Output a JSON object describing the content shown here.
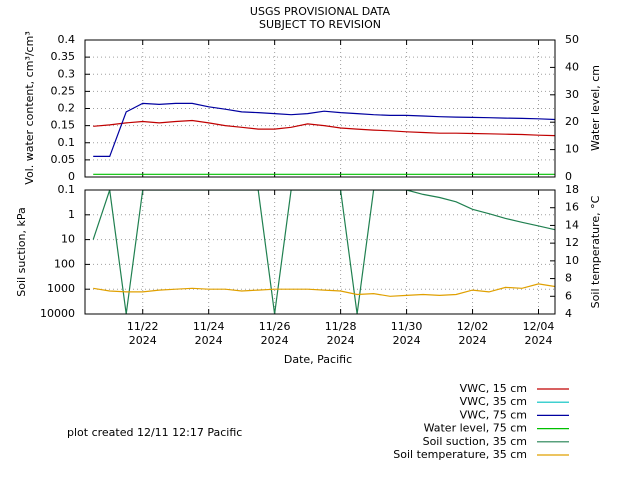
{
  "chart_data": [
    {
      "type": "line",
      "title": "USGS PROVISIONAL DATA",
      "subtitle": "SUBJECT TO REVISION",
      "y_label": "Vol. water content, cm³/cm³",
      "y2_label": "Water level, cm",
      "x": [
        "2024-11-20T12:00",
        "2024-11-21T00:00",
        "2024-11-21T12:00",
        "2024-11-22T00:00",
        "2024-11-22T12:00",
        "2024-11-23T00:00",
        "2024-11-23T12:00",
        "2024-11-24T00:00",
        "2024-11-24T12:00",
        "2024-11-25T00:00",
        "2024-11-25T12:00",
        "2024-11-26T00:00",
        "2024-11-26T12:00",
        "2024-11-27T00:00",
        "2024-11-27T12:00",
        "2024-11-28T00:00",
        "2024-11-28T12:00",
        "2024-11-29T00:00",
        "2024-11-29T12:00",
        "2024-11-30T00:00",
        "2024-11-30T12:00",
        "2024-12-01T00:00",
        "2024-12-01T12:00",
        "2024-12-02T00:00",
        "2024-12-02T12:00",
        "2024-12-03T00:00",
        "2024-12-03T12:00",
        "2024-12-04T00:00",
        "2024-12-04T12:00"
      ],
      "xlim": [
        "2024-11-20T06:00",
        "2024-12-04T12:00"
      ],
      "xticks": [
        "2024-11-22T00:00",
        "2024-11-24T00:00",
        "2024-11-26T00:00",
        "2024-11-28T00:00",
        "2024-11-30T00:00",
        "2024-12-02T00:00",
        "2024-12-04T00:00"
      ],
      "ylim": [
        0,
        0.4
      ],
      "yticks": [
        0,
        0.05,
        0.1,
        0.15,
        0.2,
        0.25,
        0.3,
        0.35,
        0.4
      ],
      "y2lim": [
        0,
        50
      ],
      "y2ticks": [
        0,
        10,
        20,
        30,
        40,
        50
      ],
      "grid": true,
      "series": [
        {
          "name": "VWC, 15 cm",
          "color": "#c00000",
          "values": [
            0.148,
            0.152,
            0.158,
            0.162,
            0.158,
            0.162,
            0.165,
            0.158,
            0.15,
            0.145,
            0.14,
            0.14,
            0.145,
            0.155,
            0.15,
            0.143,
            0.14,
            0.137,
            0.135,
            0.132,
            0.13,
            0.128,
            0.128,
            0.127,
            0.126,
            0.125,
            0.124,
            0.122,
            0.121
          ]
        },
        {
          "name": "VWC, 35 cm",
          "color": "#00c0c0",
          "values": [
            null,
            null,
            null,
            null,
            null,
            null,
            null,
            null,
            null,
            null,
            null,
            null,
            null,
            null,
            null,
            null,
            null,
            null,
            null,
            null,
            null,
            null,
            null,
            null,
            null,
            null,
            null,
            null,
            null
          ]
        },
        {
          "name": "VWC, 75 cm",
          "color": "#0000a0",
          "values": [
            0.06,
            0.06,
            0.19,
            0.215,
            0.212,
            0.215,
            0.215,
            0.205,
            0.198,
            0.19,
            0.188,
            0.185,
            0.182,
            0.185,
            0.192,
            0.188,
            0.185,
            0.182,
            0.18,
            0.18,
            0.178,
            0.176,
            0.175,
            0.174,
            0.173,
            0.172,
            0.171,
            0.17,
            0.168
          ]
        },
        {
          "name": "Water level, 75 cm",
          "color": "#00c000",
          "axis": "y2",
          "values": [
            1,
            1,
            1,
            1,
            1,
            1,
            1,
            1,
            1,
            1,
            1,
            1,
            1,
            1,
            1,
            1,
            1,
            1,
            1,
            1,
            1,
            1,
            1,
            1,
            1,
            1,
            1,
            1,
            1
          ]
        }
      ]
    },
    {
      "type": "line",
      "y_label": "Soil suction, kPa",
      "y2_label": "Soil temperature, °C",
      "x_label": "Date, Pacific",
      "annotation": "plot created 12/11 12:17 Pacific",
      "x": [
        "2024-11-20T12:00",
        "2024-11-21T00:00",
        "2024-11-21T12:00",
        "2024-11-22T00:00",
        "2024-11-22T12:00",
        "2024-11-23T00:00",
        "2024-11-23T12:00",
        "2024-11-24T00:00",
        "2024-11-24T12:00",
        "2024-11-25T00:00",
        "2024-11-25T12:00",
        "2024-11-26T00:00",
        "2024-11-26T12:00",
        "2024-11-27T00:00",
        "2024-11-27T12:00",
        "2024-11-28T00:00",
        "2024-11-28T12:00",
        "2024-11-29T00:00",
        "2024-11-29T12:00",
        "2024-11-30T00:00",
        "2024-11-30T12:00",
        "2024-12-01T00:00",
        "2024-12-01T12:00",
        "2024-12-02T00:00",
        "2024-12-02T12:00",
        "2024-12-03T00:00",
        "2024-12-03T12:00",
        "2024-12-04T00:00",
        "2024-12-04T12:00"
      ],
      "xlim": [
        "2024-11-20T06:00",
        "2024-12-04T12:00"
      ],
      "xticks": [
        {
          "value": "2024-11-22T00:00",
          "label": "11/22\n2024"
        },
        {
          "value": "2024-11-24T00:00",
          "label": "11/24\n2024"
        },
        {
          "value": "2024-11-26T00:00",
          "label": "11/26\n2024"
        },
        {
          "value": "2024-11-28T00:00",
          "label": "11/28\n2024"
        },
        {
          "value": "2024-11-30T00:00",
          "label": "11/30\n2024"
        },
        {
          "value": "2024-12-02T00:00",
          "label": "12/02\n2024"
        },
        {
          "value": "2024-12-04T00:00",
          "label": "12/04\n2024"
        }
      ],
      "ylim": [
        0.1,
        10000
      ],
      "yticks": [
        0.1,
        1,
        10,
        100,
        1000,
        10000
      ],
      "log_scale": true,
      "inverted": true,
      "y2lim": [
        4,
        18
      ],
      "y2ticks": [
        4,
        6,
        8,
        10,
        12,
        14,
        16,
        18
      ],
      "grid": true,
      "series": [
        {
          "name": "Soil suction, 35 cm",
          "color": "#208050",
          "values": [
            10,
            0.1,
            10000,
            0.1,
            0.1,
            0.1,
            0.1,
            0.1,
            0.1,
            0.1,
            0.1,
            10000,
            0.1,
            0.1,
            0.1,
            0.1,
            10000,
            0.1,
            0.1,
            0.1,
            0.15,
            0.2,
            0.3,
            0.6,
            0.9,
            1.4,
            2,
            2.8,
            4
          ]
        },
        {
          "name": "Soil temperature, 35 cm",
          "color": "#e0a000",
          "axis": "y2",
          "values": [
            6.9,
            6.6,
            6.5,
            6.5,
            6.7,
            6.8,
            6.9,
            6.8,
            6.8,
            6.6,
            6.7,
            6.8,
            6.8,
            6.8,
            6.7,
            6.6,
            6.2,
            6.3,
            6.0,
            6.1,
            6.2,
            6.1,
            6.2,
            6.7,
            6.5,
            7.0,
            6.9,
            7.4,
            7.1
          ]
        }
      ]
    }
  ]
}
